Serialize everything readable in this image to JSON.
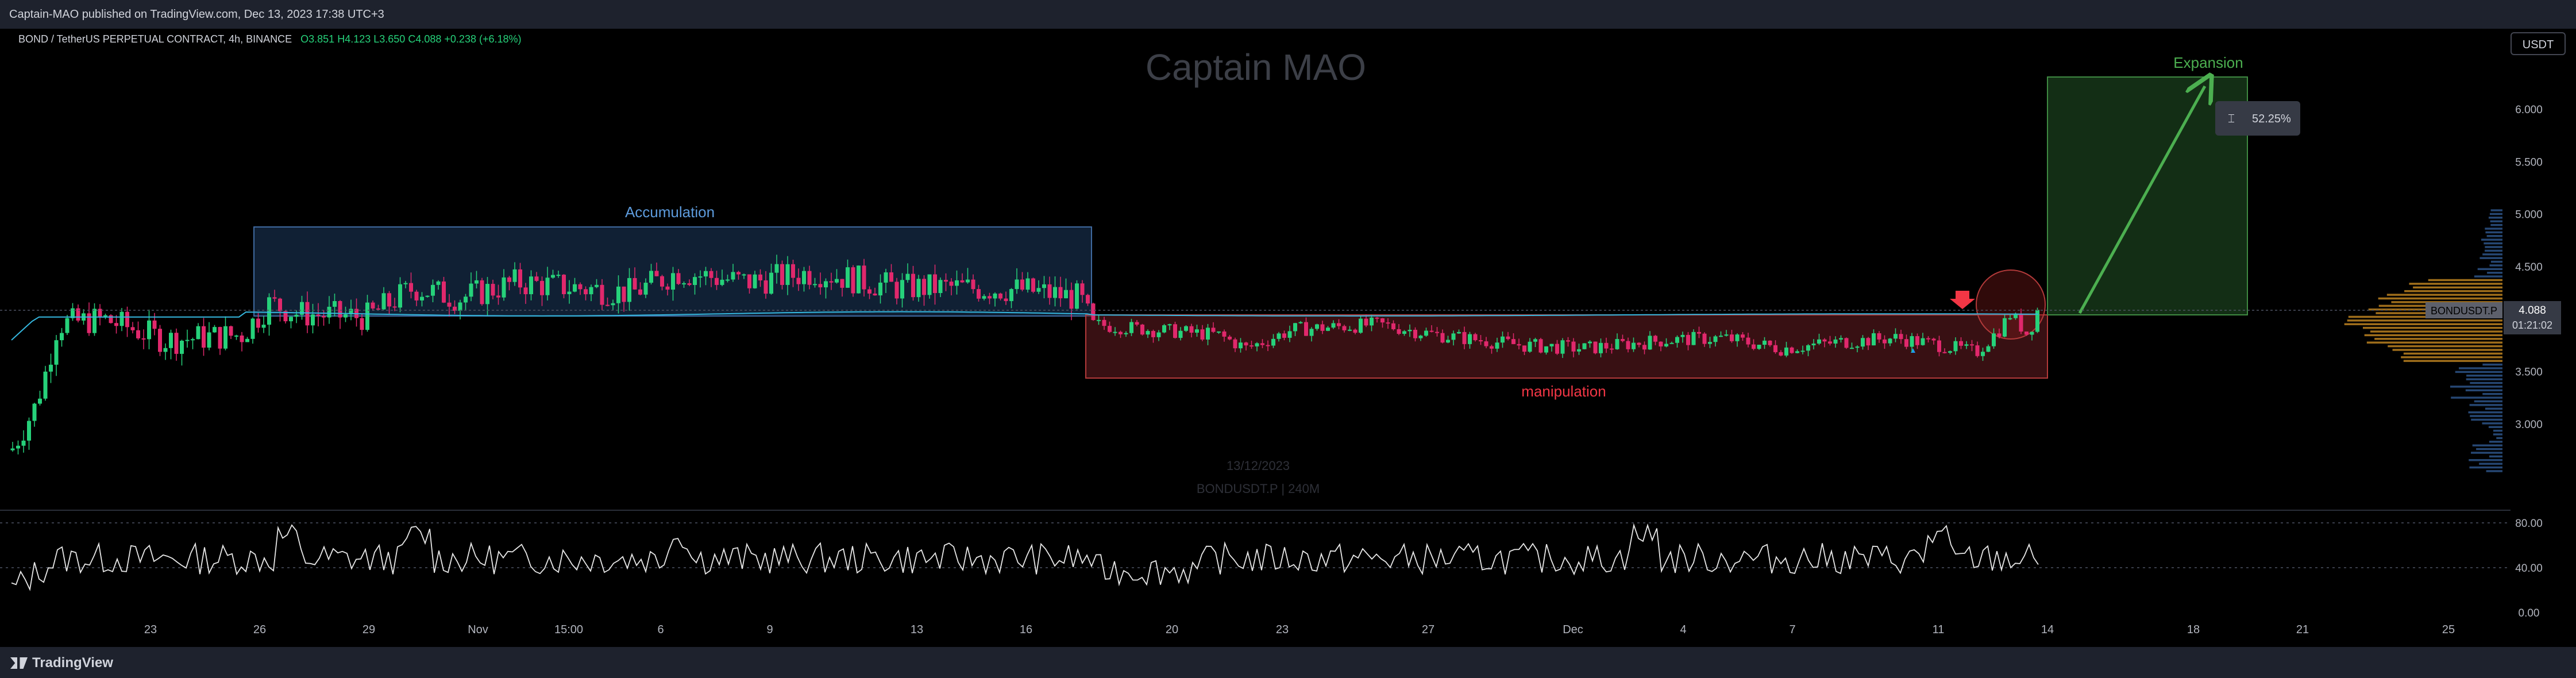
{
  "header": {
    "published_text": "Captain-MAO published on TradingView.com, Dec 13, 2023 17:38 UTC+3"
  },
  "symbol_info": {
    "name": "BOND / TetherUS PERPETUAL CONTRACT, 4h, BINANCE",
    "open": "O3.851",
    "high": "H4.123",
    "low": "L3.650",
    "close": "C4.088",
    "change": "+0.238 (+6.18%)"
  },
  "currency_button": "USDT",
  "watermark": {
    "title": "Captain MAO",
    "date": "13/12/2023",
    "symbol": "BONDUSDT.P | 240M"
  },
  "annotations": {
    "accumulation": "Accumulation",
    "manipulation": "manipulation",
    "expansion": "Expansion",
    "measure": "52.25%"
  },
  "price_labels": {
    "symbol_tag": "BONDUSDT.P",
    "last_price": "4.088",
    "countdown": "01:21:02"
  },
  "footer": {
    "logo_text": "TradingView"
  },
  "colors": {
    "up": "#26d17a",
    "down": "#e0286c",
    "accumulation_box": "#1e3a5f",
    "manipulation_box": "#5e1a1f",
    "expansion_box": "#1a3d1c",
    "ma_line": "#35b8e0"
  },
  "chart_data": {
    "type": "candlestick",
    "timeframe": "4h",
    "x_tick_labels": [
      "23",
      "26",
      "29",
      "Nov",
      "15:00",
      "6",
      "9",
      "13",
      "16",
      "20",
      "23",
      "27",
      "Dec",
      "4",
      "7",
      "11",
      "14",
      "18",
      "21",
      "25"
    ],
    "y_tick_labels": [
      "3.000",
      "3.500",
      "4.000",
      "4.500",
      "5.000",
      "5.500",
      "6.000"
    ],
    "ylim": [
      2.5,
      6.5
    ],
    "series_close_approx": [
      {
        "x": "20",
        "y": 2.8
      },
      {
        "x": "21",
        "y": 3.9
      },
      {
        "x": "22",
        "y": 4.0
      },
      {
        "x": "23",
        "y": 3.85
      },
      {
        "x": "26",
        "y": 4.15
      },
      {
        "x": "29",
        "y": 4.1
      },
      {
        "x": "Nov",
        "y": 4.3
      },
      {
        "x": "6",
        "y": 4.45
      },
      {
        "x": "9",
        "y": 4.35
      },
      {
        "x": "13",
        "y": 4.3
      },
      {
        "x": "16",
        "y": 4.3
      },
      {
        "x": "17",
        "y": 3.95
      },
      {
        "x": "20",
        "y": 3.85
      },
      {
        "x": "23",
        "y": 3.8
      },
      {
        "x": "27",
        "y": 3.8
      },
      {
        "x": "Dec",
        "y": 3.75
      },
      {
        "x": "4",
        "y": 3.8
      },
      {
        "x": "7",
        "y": 3.8
      },
      {
        "x": "11",
        "y": 3.8
      },
      {
        "x": "12",
        "y": 3.7
      },
      {
        "x": "13",
        "y": 4.088
      }
    ],
    "indicator": {
      "name": "",
      "y_tick_labels": [
        "80.00",
        "40.00",
        "0.00"
      ],
      "ylim": [
        0,
        100
      ]
    }
  }
}
